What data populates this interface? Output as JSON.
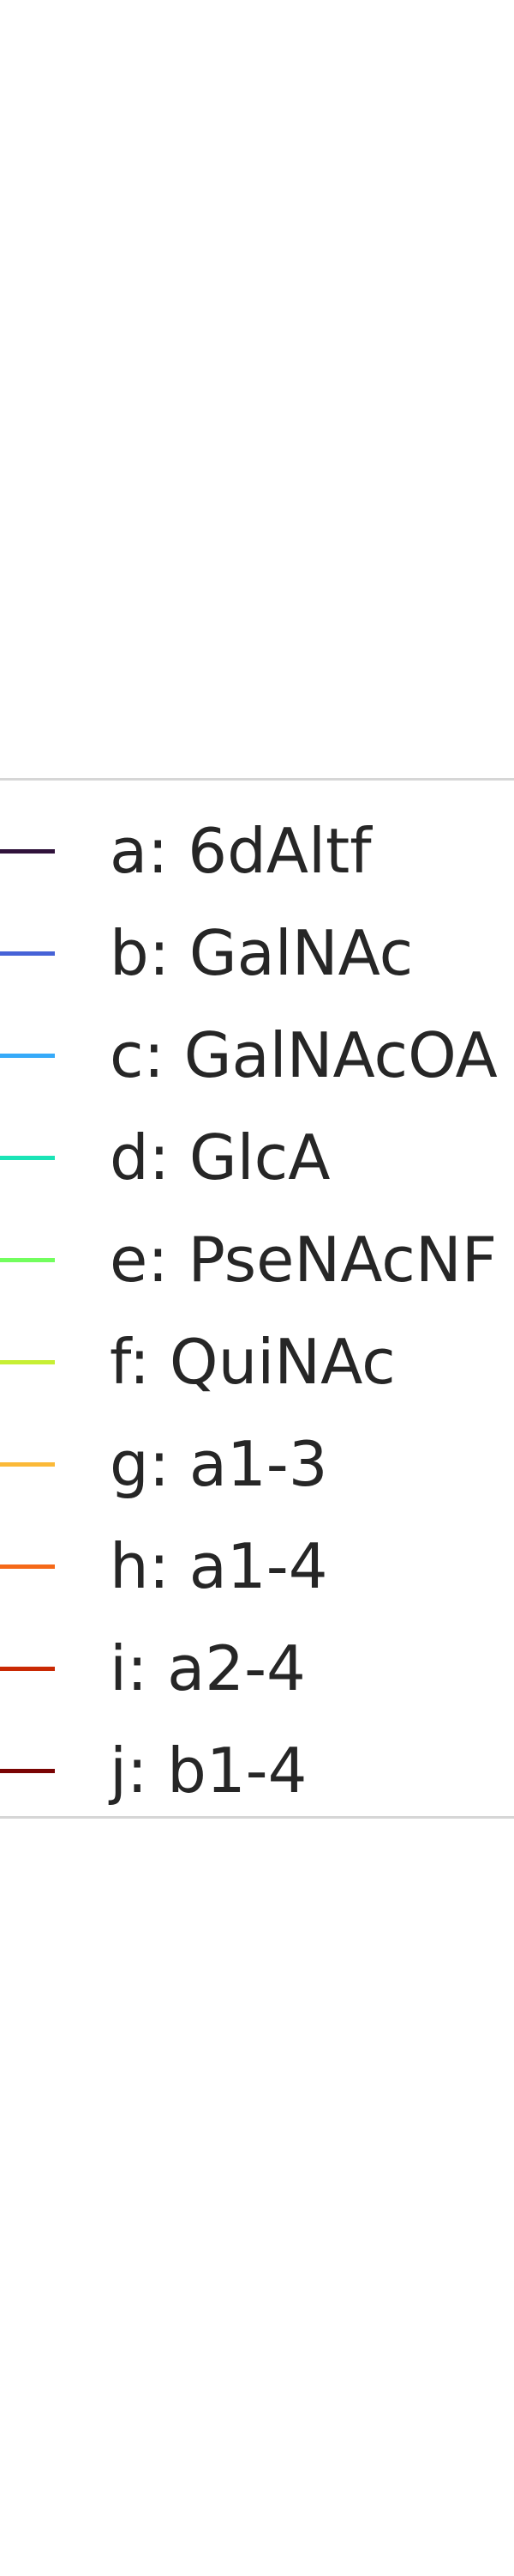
{
  "chart_data": {
    "type": "line",
    "title": "",
    "xlabel": "",
    "ylabel": "",
    "legend": {
      "placement": "center-left",
      "entries": [
        {
          "label": "a: 6dAltf",
          "color": "#30123b"
        },
        {
          "label": "b: GalNAc",
          "color": "#4662d7"
        },
        {
          "label": "c: GalNAcOA",
          "color": "#36aaf9"
        },
        {
          "label": "d: GlcA",
          "color": "#1ae4b6"
        },
        {
          "label": "e: PseNAcNF",
          "color": "#72fe5e"
        },
        {
          "label": "f: QuiNAc",
          "color": "#c7ef34"
        },
        {
          "label": "g: a1-3",
          "color": "#fbb938"
        },
        {
          "label": "h: a1-4",
          "color": "#f56918"
        },
        {
          "label": "i: a2-4",
          "color": "#c92903"
        },
        {
          "label": "j: b1-4",
          "color": "#7a0403"
        }
      ]
    }
  }
}
